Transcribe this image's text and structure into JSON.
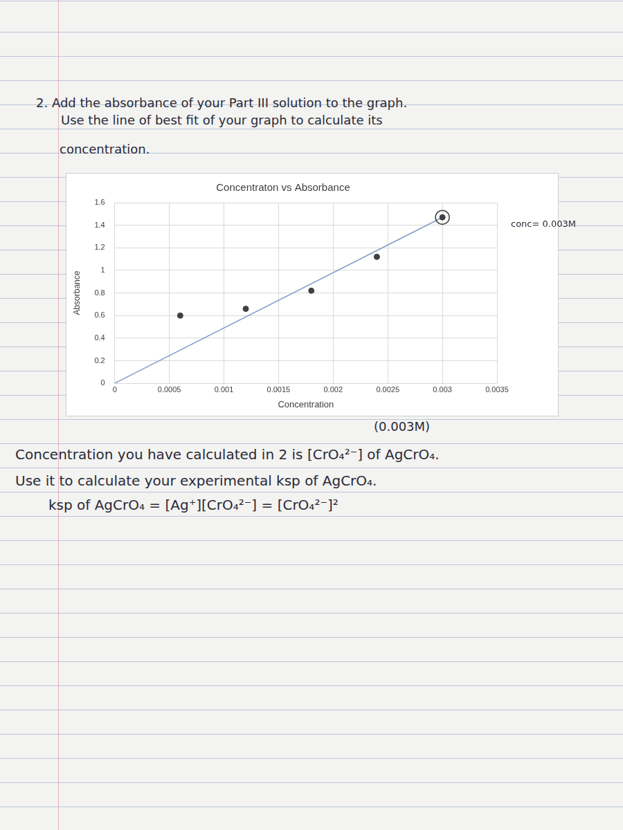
{
  "page": {
    "question": [
      "2. Add the absorbance of your Part III solution to the graph.",
      "Use the line of best fit of your graph to calculate its",
      "concentration."
    ],
    "answers": [
      "(0.003M)",
      "Concentration you have calculated in 2 is [CrO₄²⁻] of AgCrO₄.",
      "Use it to calculate your experimental ksp of AgCrO₄.",
      "ksp of AgCrO₄ = [Ag⁺][CrO₄²⁻] = [CrO₄²⁻]²"
    ]
  },
  "chart_data": {
    "type": "scatter",
    "title": "Concentraton vs Absorbance",
    "x_label": "Concentration",
    "y_label": "Absorbance",
    "xlim": [
      0,
      0.0035
    ],
    "xticks": [
      0,
      0.0005,
      0.001,
      0.0015,
      0.002,
      0.0025,
      0.003,
      0.0035
    ],
    "ylim": [
      0,
      1.6
    ],
    "yticks": [
      0,
      0.2,
      0.4,
      0.6,
      0.8,
      1,
      1.2,
      1.4,
      1.6
    ],
    "grid": true,
    "series": [
      {
        "type": "scatter",
        "color": "#404040",
        "marker": "circle",
        "x": [
          0.0006,
          0.0012,
          0.0018,
          0.0024
        ],
        "values": [
          0.6,
          0.66,
          0.82,
          1.12
        ]
      },
      {
        "type": "scatter",
        "color": "#404040",
        "marker": "circled",
        "x": [
          0.003
        ],
        "values": [
          1.47
        ]
      },
      {
        "type": "line",
        "color": "#7f9cc8",
        "line_style": "solid",
        "x": [
          0,
          0.003
        ],
        "values": [
          0,
          1.47
        ]
      }
    ],
    "annotations": [
      "conc= 0.003M"
    ]
  }
}
